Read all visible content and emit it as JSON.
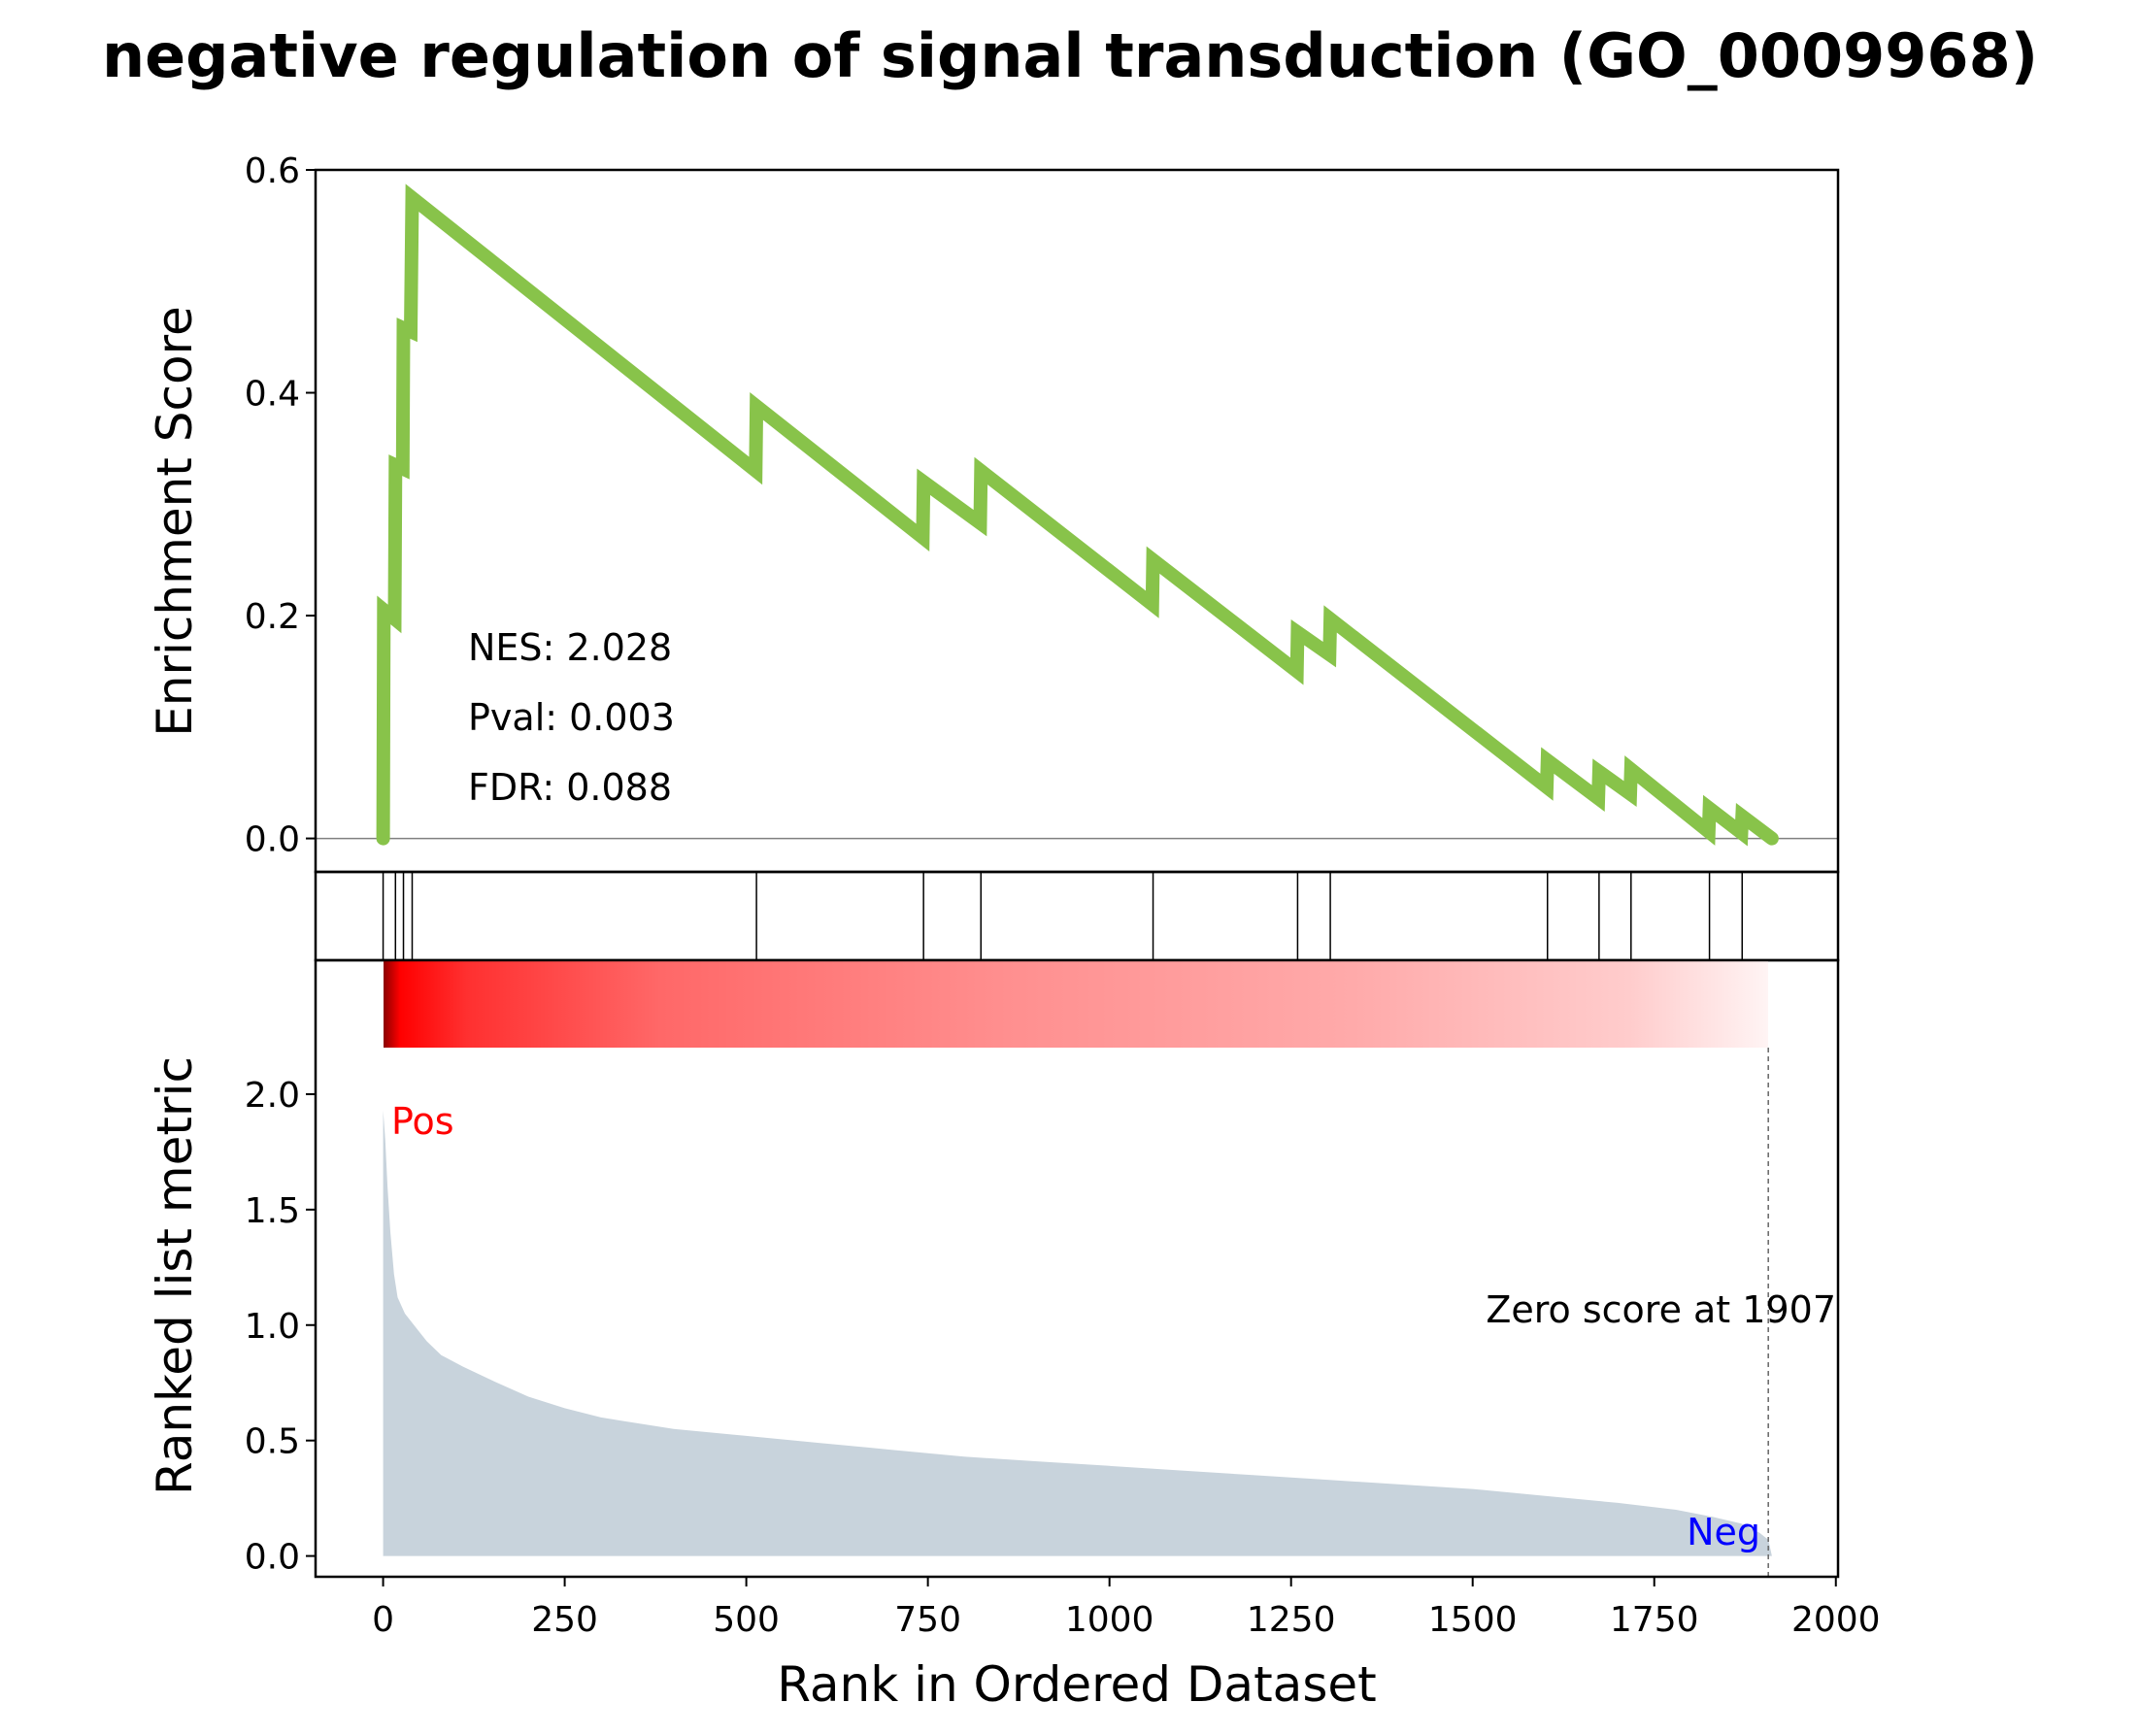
{
  "title": "negative regulation of signal transduction (GO_0009968)",
  "colors": {
    "es_line": "#88c34a",
    "bars": "#c8d3dc",
    "pos_label": "#ff0000",
    "neg_label": "#0000ff",
    "axes": "#000000",
    "zero_line": "#808080"
  },
  "chart_data": [
    {
      "panel": "enrichment_score",
      "type": "line",
      "ylabel": "Enrichment Score",
      "ylim": [
        -0.03,
        0.6
      ],
      "yticks": [
        0.0,
        0.2,
        0.4,
        0.6
      ],
      "ytick_labels": [
        "0.0",
        "0.2",
        "0.4",
        "0.6"
      ],
      "xlim": [
        -93,
        2003
      ],
      "baseline": 0.0,
      "series": [
        {
          "points": [
            [
              0,
              0.0
            ],
            [
              1,
              0.205
            ],
            [
              16,
              0.197
            ],
            [
              17,
              0.335
            ],
            [
              27,
              0.332
            ],
            [
              28,
              0.458
            ],
            [
              38,
              0.455
            ],
            [
              40,
              0.575
            ],
            [
              513,
              0.33
            ],
            [
              514,
              0.388
            ],
            [
              743,
              0.27
            ],
            [
              744,
              0.32
            ],
            [
              822,
              0.283
            ],
            [
              823,
              0.33
            ],
            [
              1059,
              0.21
            ],
            [
              1060,
              0.25
            ],
            [
              1258,
              0.15
            ],
            [
              1259,
              0.185
            ],
            [
              1303,
              0.165
            ],
            [
              1304,
              0.197
            ],
            [
              1602,
              0.046
            ],
            [
              1603,
              0.07
            ],
            [
              1673,
              0.036
            ],
            [
              1674,
              0.06
            ],
            [
              1717,
              0.04
            ],
            [
              1718,
              0.062
            ],
            [
              1825,
              0.006
            ],
            [
              1826,
              0.027
            ],
            [
              1870,
              0.005
            ],
            [
              1871,
              0.02
            ],
            [
              1912,
              0.0
            ]
          ]
        }
      ],
      "annotations": [
        "NES: 2.028",
        "Pval: 0.003",
        "FDR: 0.088"
      ]
    },
    {
      "panel": "hits",
      "type": "scatter",
      "hit_ranks": [
        0,
        17,
        28,
        40,
        514,
        744,
        823,
        1060,
        1259,
        1304,
        1603,
        1674,
        1718,
        1826,
        1871
      ]
    },
    {
      "panel": "ranked_list_metric",
      "type": "area",
      "ylabel": "Ranked list metric",
      "xlabel": "Rank in Ordered Dataset",
      "ylim": [
        -0.09,
        2.58
      ],
      "yticks": [
        0.0,
        0.5,
        1.0,
        1.5,
        2.0
      ],
      "ytick_labels": [
        "0.0",
        "0.5",
        "1.0",
        "1.5",
        "2.0"
      ],
      "xlim": [
        -93,
        2003
      ],
      "xticks": [
        0,
        250,
        500,
        750,
        1000,
        1250,
        1500,
        1750,
        2000
      ],
      "xtick_labels": [
        "0",
        "250",
        "500",
        "750",
        "1000",
        "1250",
        "1500",
        "1750",
        "2000"
      ],
      "series": [
        {
          "points": [
            [
              0,
              1.93
            ],
            [
              3,
              1.8
            ],
            [
              6,
              1.6
            ],
            [
              10,
              1.4
            ],
            [
              15,
              1.22
            ],
            [
              20,
              1.12
            ],
            [
              30,
              1.05
            ],
            [
              45,
              0.99
            ],
            [
              60,
              0.93
            ],
            [
              80,
              0.87
            ],
            [
              110,
              0.82
            ],
            [
              150,
              0.76
            ],
            [
              200,
              0.69
            ],
            [
              250,
              0.64
            ],
            [
              300,
              0.6
            ],
            [
              400,
              0.55
            ],
            [
              500,
              0.52
            ],
            [
              600,
              0.49
            ],
            [
              700,
              0.46
            ],
            [
              800,
              0.43
            ],
            [
              900,
              0.41
            ],
            [
              1000,
              0.39
            ],
            [
              1100,
              0.37
            ],
            [
              1200,
              0.35
            ],
            [
              1300,
              0.33
            ],
            [
              1400,
              0.31
            ],
            [
              1500,
              0.29
            ],
            [
              1600,
              0.26
            ],
            [
              1700,
              0.23
            ],
            [
              1780,
              0.2
            ],
            [
              1830,
              0.17
            ],
            [
              1870,
              0.14
            ],
            [
              1895,
              0.1
            ],
            [
              1907,
              0.07
            ],
            [
              1912,
              0.0
            ]
          ]
        }
      ],
      "heatmap_range": [
        0,
        1912
      ],
      "zero_score_rank": 1907,
      "annotations": {
        "zero_score": "Zero score at 1907",
        "pos": "Pos",
        "neg": "Neg"
      }
    }
  ]
}
